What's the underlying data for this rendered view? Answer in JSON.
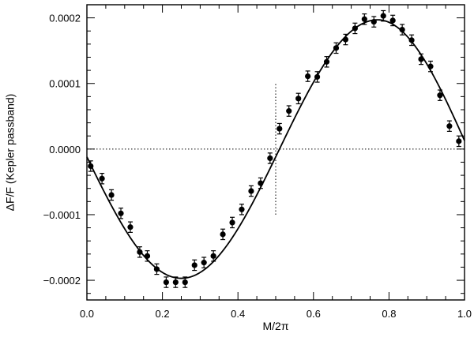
{
  "chart_data": {
    "type": "scatter",
    "xlabel": "M/2π",
    "ylabel": "ΔF/F (Kepler passband)",
    "xlim": [
      0.0,
      1.0
    ],
    "ylim": [
      -0.00023,
      0.00022
    ],
    "x_ticks": [
      0.0,
      0.2,
      0.4,
      0.6,
      0.8,
      1.0
    ],
    "x_tick_labels": [
      "0.0",
      "0.2",
      "0.4",
      "0.6",
      "0.8",
      "1.0"
    ],
    "y_ticks": [
      -0.0002,
      -0.0001,
      0.0,
      0.0001,
      0.0002
    ],
    "y_tick_labels": [
      "−0.0002",
      "−0.0001",
      "0.0000",
      "0.0001",
      "0.0002"
    ],
    "reference_lines": {
      "horizontal_dotted_y": 0.0,
      "vertical_dotted": {
        "x": 0.5,
        "y_from": -0.0001,
        "y_to": 0.0001
      }
    },
    "model_curve": {
      "form": "sine",
      "amplitude": 0.000197,
      "minimum_at_x": 0.25,
      "maximum_at_x": 0.77
    },
    "series": [
      {
        "style": "points with error bars",
        "error": 8e-06,
        "points": [
          [
            0.01,
            -2.6e-05
          ],
          [
            0.04,
            -4.5e-05
          ],
          [
            0.065,
            -7e-05
          ],
          [
            0.09,
            -9.8e-05
          ],
          [
            0.115,
            -0.000119
          ],
          [
            0.14,
            -0.000157
          ],
          [
            0.16,
            -0.000163
          ],
          [
            0.185,
            -0.000183
          ],
          [
            0.21,
            -0.000203
          ],
          [
            0.235,
            -0.000203
          ],
          [
            0.26,
            -0.000203
          ],
          [
            0.285,
            -0.000177
          ],
          [
            0.31,
            -0.000173
          ],
          [
            0.335,
            -0.000163
          ],
          [
            0.36,
            -0.00013
          ],
          [
            0.385,
            -0.000112
          ],
          [
            0.41,
            -9.2e-05
          ],
          [
            0.435,
            -6.4e-05
          ],
          [
            0.46,
            -5.2e-05
          ],
          [
            0.485,
            -1.4e-05
          ],
          [
            0.51,
            3.1e-05
          ],
          [
            0.535,
            5.8e-05
          ],
          [
            0.56,
            7.7e-05
          ],
          [
            0.585,
            0.000111
          ],
          [
            0.61,
            0.00011
          ],
          [
            0.635,
            0.000133
          ],
          [
            0.66,
            0.000154
          ],
          [
            0.685,
            0.000167
          ],
          [
            0.71,
            0.000184
          ],
          [
            0.735,
            0.000198
          ],
          [
            0.76,
            0.000194
          ],
          [
            0.785,
            0.000203
          ],
          [
            0.81,
            0.000196
          ],
          [
            0.835,
            0.000182
          ],
          [
            0.86,
            0.000166
          ],
          [
            0.885,
            0.000137
          ],
          [
            0.91,
            0.000126
          ],
          [
            0.935,
            8.2e-05
          ],
          [
            0.96,
            3.5e-05
          ],
          [
            0.985,
            1.2e-05
          ]
        ]
      }
    ]
  }
}
